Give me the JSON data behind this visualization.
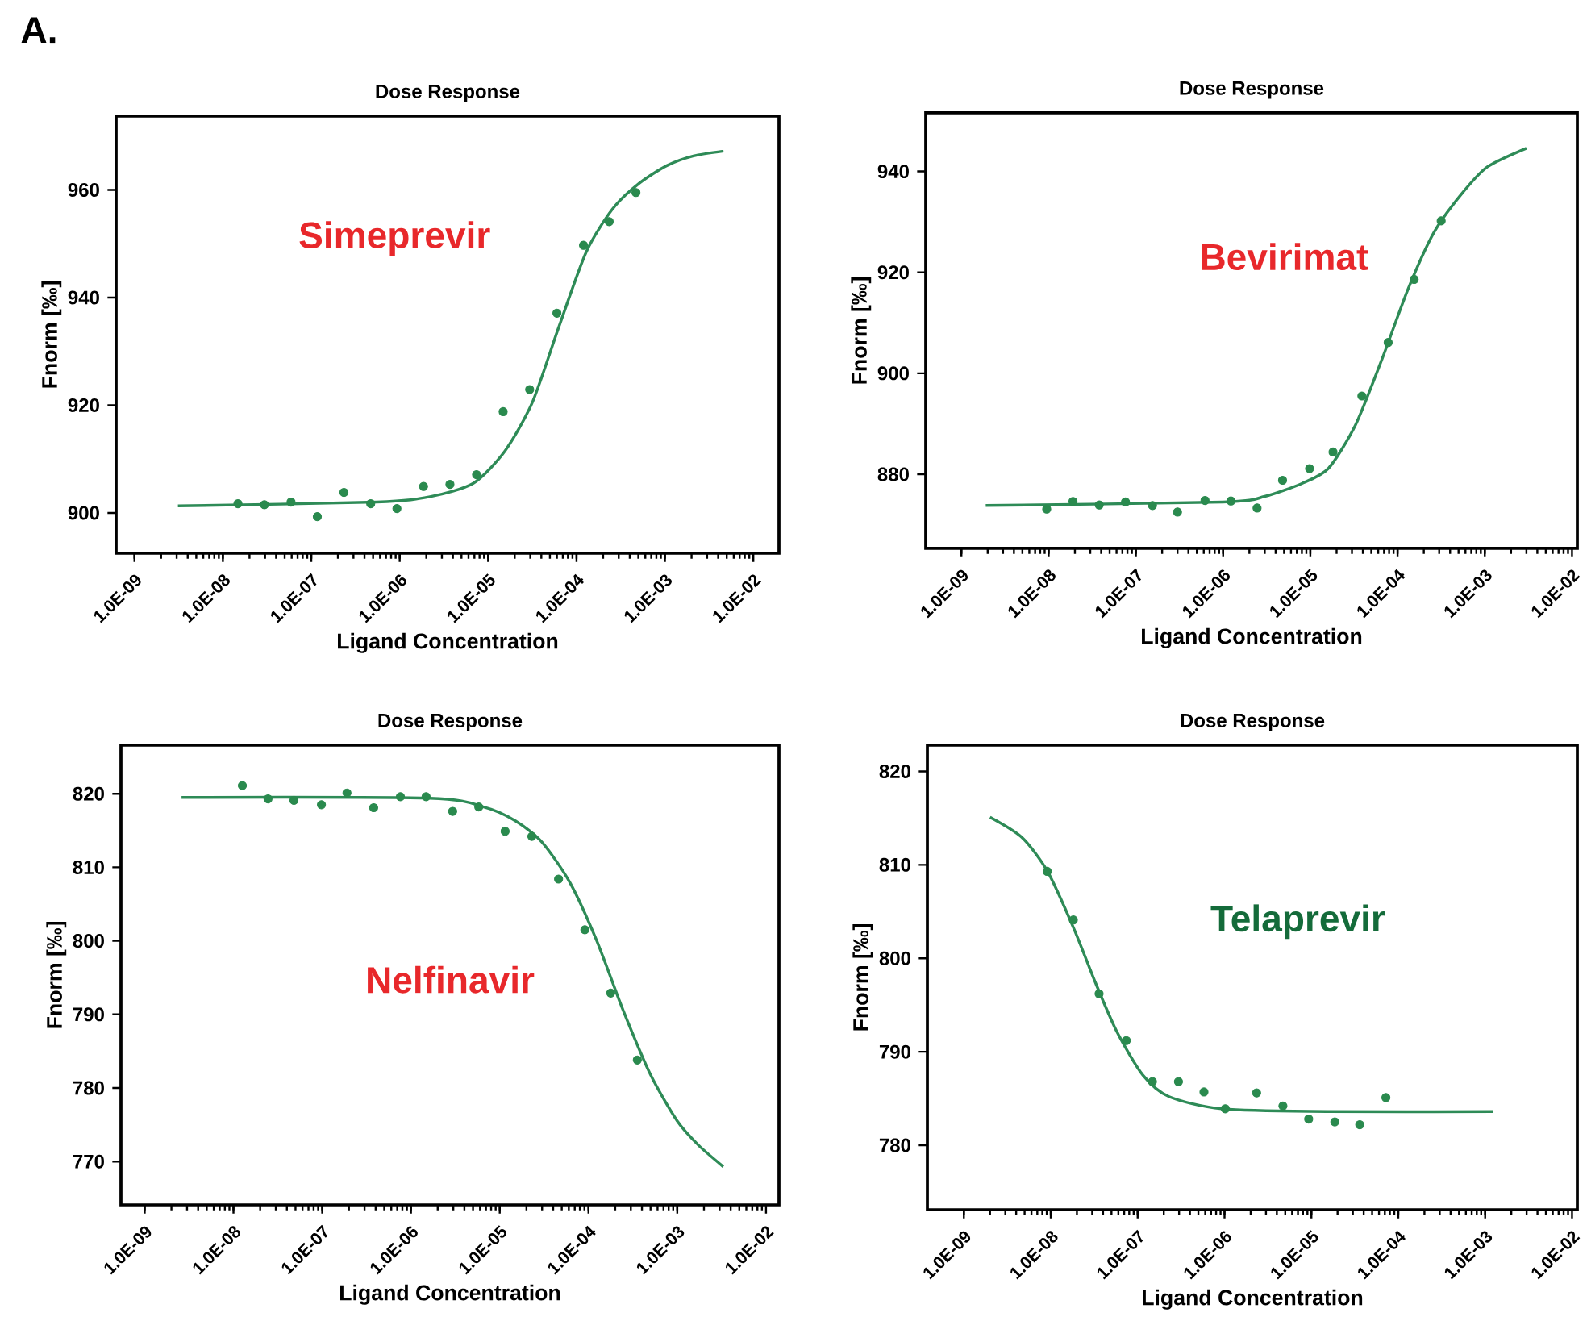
{
  "chart_data": [
    {
      "type": "scatter",
      "title": "Dose Response",
      "xlabel": "Ligand Concentration",
      "ylabel": "Fnorm [‰]",
      "log": "x",
      "marker": "circle",
      "annotations": [
        "Simeprevir",
        "A."
      ],
      "xlim": [
        6.2e-10,
        0.0195
      ],
      "ylim": [
        892.5,
        973.7
      ],
      "xticks": [
        {
          "value": 1e-09,
          "label": "1.0E-09"
        },
        {
          "value": 1e-08,
          "label": "1.0E-08"
        },
        {
          "value": 1e-07,
          "label": "1.0E-07"
        },
        {
          "value": 1e-06,
          "label": "1.0E-06"
        },
        {
          "value": 1e-05,
          "label": "1.0E-05"
        },
        {
          "value": 0.0001,
          "label": "1.0E-04"
        },
        {
          "value": 0.001,
          "label": "1.0E-03"
        },
        {
          "value": 0.01,
          "label": "1.0E-02"
        }
      ],
      "yticks": [
        900,
        920,
        940,
        960
      ],
      "series": [
        {
          "color": "#2a8a4e",
          "x": [
            1.48e-08,
            2.95e-08,
            5.9e-08,
            1.17e-07,
            2.34e-07,
            4.7e-07,
            9.3e-07,
            1.86e-06,
            3.7e-06,
            7.4e-06,
            1.48e-05,
            2.95e-05,
            6e-05,
            0.00012,
            0.000234,
            0.00047
          ],
          "values": [
            901.7,
            901.5,
            902,
            899.3,
            903.8,
            901.7,
            900.8,
            904.9,
            905.3,
            907.1,
            918.8,
            922.9,
            937.1,
            949.7,
            954.1,
            959.5
          ]
        },
        {
          "type": "line",
          "marker": "none",
          "color": "#2e8b57",
          "x": [
            3.1e-09,
            5.5e-07,
            2.2e-06,
            6.8e-06,
            1.55e-05,
            3.16e-05,
            6.3e-05,
            0.000129,
            0.000257,
            0.00051,
            0.00105,
            0.0021,
            0.0046
          ],
          "values": [
            901.3,
            902,
            903,
            905.5,
            911.5,
            920.5,
            934.5,
            948.5,
            956.5,
            961.2,
            964.5,
            966.3,
            967.2
          ]
        }
      ]
    },
    {
      "type": "scatter",
      "title": "Dose Response",
      "xlabel": "Ligand Concentration",
      "ylabel": "Fnorm [‰]",
      "log": "x",
      "marker": "circle",
      "annotations": [
        "Bevirimat"
      ],
      "xlim": [
        3.9e-10,
        0.0115
      ],
      "ylim": [
        865.3,
        951.6
      ],
      "xticks": [
        {
          "value": 1e-09,
          "label": "1.0E-09"
        },
        {
          "value": 1e-08,
          "label": "1.0E-08"
        },
        {
          "value": 1e-07,
          "label": "1.0E-07"
        },
        {
          "value": 1e-06,
          "label": "1.0E-06"
        },
        {
          "value": 1e-05,
          "label": "1.0E-05"
        },
        {
          "value": 0.0001,
          "label": "1.0E-04"
        },
        {
          "value": 0.001,
          "label": "1.0E-03"
        },
        {
          "value": 0.01,
          "label": "1.0E-02"
        }
      ],
      "yticks": [
        880,
        900,
        920,
        940
      ],
      "series": [
        {
          "color": "#2a8a4e",
          "x": [
            9.5e-09,
            1.9e-08,
            3.8e-08,
            7.6e-08,
            1.55e-07,
            3e-07,
            6.2e-07,
            1.23e-06,
            2.45e-06,
            4.8e-06,
            9.8e-06,
            1.82e-05,
            3.9e-05,
            7.8e-05,
            0.000155,
            0.000316
          ],
          "values": [
            873.1,
            874.6,
            873.9,
            874.5,
            873.8,
            872.5,
            874.8,
            874.7,
            873.3,
            878.8,
            881.1,
            884.4,
            895.5,
            906.1,
            918.6,
            930.2
          ]
        },
        {
          "type": "line",
          "marker": "none",
          "color": "#2e8b57",
          "x": [
            1.9e-09,
            1e-06,
            3e-06,
            8.1e-06,
            1.62e-05,
            3.3e-05,
            6.6e-05,
            0.000132,
            0.000263,
            0.00054,
            0.00107,
            0.003
          ],
          "values": [
            873.8,
            874.5,
            875.6,
            878.2,
            881.2,
            889.8,
            902.7,
            916.7,
            928,
            935.5,
            940.9,
            944.6
          ]
        }
      ]
    },
    {
      "type": "scatter",
      "title": "Dose Response",
      "xlabel": "Ligand Concentration",
      "ylabel": "Fnorm [‰]",
      "log": "x",
      "marker": "circle",
      "annotations": [
        "Nelfinavir"
      ],
      "xlim": [
        5.4e-10,
        0.014
      ],
      "ylim": [
        764.1,
        826.6
      ],
      "xticks": [
        {
          "value": 1e-09,
          "label": "1.0E-09"
        },
        {
          "value": 1e-08,
          "label": "1.0E-08"
        },
        {
          "value": 1e-07,
          "label": "1.0E-07"
        },
        {
          "value": 1e-06,
          "label": "1.0E-06"
        },
        {
          "value": 1e-05,
          "label": "1.0E-05"
        },
        {
          "value": 0.0001,
          "label": "1.0E-04"
        },
        {
          "value": 0.001,
          "label": "1.0E-03"
        },
        {
          "value": 0.01,
          "label": "1.0E-02"
        }
      ],
      "yticks": [
        770,
        780,
        790,
        800,
        810,
        820
      ],
      "series": [
        {
          "color": "#2a8a4e",
          "x": [
            1.26e-08,
            2.45e-08,
            4.8e-08,
            9.8e-08,
            1.9e-07,
            3.8e-07,
            7.6e-07,
            1.48e-06,
            2.95e-06,
            5.8e-06,
            1.15e-05,
            2.3e-05,
            4.6e-05,
            9.1e-05,
            0.000178,
            0.000355
          ],
          "values": [
            821.1,
            819.3,
            819.1,
            818.5,
            820.1,
            818.1,
            819.6,
            819.6,
            817.6,
            818.2,
            814.9,
            814.2,
            808.4,
            801.5,
            792.9,
            783.8
          ]
        },
        {
          "type": "line",
          "marker": "none",
          "color": "#2e8b57",
          "x": [
            2.6e-09,
            1.62e-06,
            6.6e-06,
            1.51e-05,
            3e-05,
            6.2e-05,
            0.000123,
            0.000245,
            0.0005,
            0.001,
            0.00174,
            0.0033
          ],
          "values": [
            819.5,
            819.4,
            818.2,
            816.3,
            813.4,
            807.9,
            800.1,
            790.6,
            781.8,
            775.5,
            772.2,
            769.3
          ]
        }
      ]
    },
    {
      "type": "scatter",
      "title": "Dose Response",
      "xlabel": "Ligand Concentration",
      "ylabel": "Fnorm [‰]",
      "log": "x",
      "marker": "circle",
      "annotations": [
        "Telaprevir"
      ],
      "xlim": [
        3.8e-10,
        0.0115
      ],
      "ylim": [
        773.1,
        822.8
      ],
      "xticks": [
        {
          "value": 1e-09,
          "label": "1.0E-09"
        },
        {
          "value": 1e-08,
          "label": "1.0E-08"
        },
        {
          "value": 1e-07,
          "label": "1.0E-07"
        },
        {
          "value": 1e-06,
          "label": "1.0E-06"
        },
        {
          "value": 1e-05,
          "label": "1.0E-05"
        },
        {
          "value": 0.0001,
          "label": "1.0E-04"
        },
        {
          "value": 0.001,
          "label": "1.0E-03"
        },
        {
          "value": 0.01,
          "label": "1.0E-02"
        }
      ],
      "yticks": [
        780,
        790,
        800,
        810,
        820
      ],
      "series": [
        {
          "color": "#2a8a4e",
          "x": [
            9.1e-09,
            1.82e-08,
            3.6e-08,
            7.4e-08,
            1.48e-07,
            2.95e-07,
            5.8e-07,
            1.02e-06,
            2.34e-06,
            4.7e-06,
            9.3e-06,
            1.86e-05,
            3.6e-05,
            7.2e-05
          ],
          "values": [
            809.3,
            804.1,
            796.2,
            791.2,
            786.8,
            786.8,
            785.7,
            783.9,
            785.6,
            784.2,
            782.8,
            782.5,
            782.2,
            785.1
          ]
        },
        {
          "type": "line",
          "marker": "none",
          "color": "#2e8b57",
          "x": [
            2e-09,
            4.7e-09,
            9.3e-09,
            1.86e-08,
            3.3e-08,
            5.8e-08,
            1.15e-07,
            2.3e-07,
            9.3e-07,
            1.51e-05,
            0.00123
          ],
          "values": [
            815.1,
            812.9,
            809.2,
            803.1,
            797.3,
            792.1,
            787.5,
            785.2,
            783.9,
            783.6,
            783.6
          ]
        }
      ]
    }
  ]
}
